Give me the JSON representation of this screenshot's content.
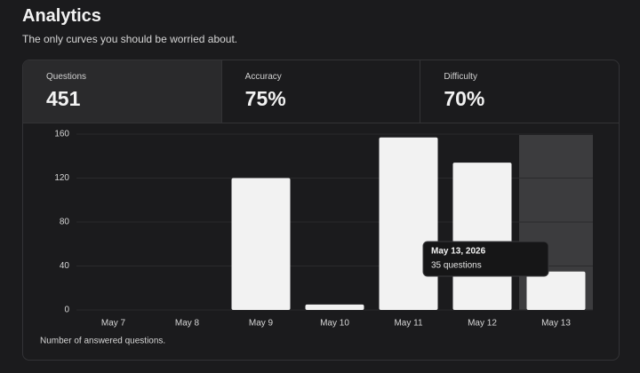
{
  "header": {
    "title": "Analytics",
    "subtitle": "The only curves you should be worried about."
  },
  "stats": [
    {
      "label": "Questions",
      "value": "451"
    },
    {
      "label": "Accuracy",
      "value": "75%"
    },
    {
      "label": "Difficulty",
      "value": "70%"
    }
  ],
  "chart_data": {
    "type": "bar",
    "categories": [
      "May 7",
      "May 8",
      "May 9",
      "May 10",
      "May 11",
      "May 12",
      "May 13"
    ],
    "values": [
      0,
      0,
      120,
      5,
      157,
      134,
      35
    ],
    "color": "#f2f2f2",
    "ylim": [
      0,
      160
    ],
    "yticks": [
      0,
      40,
      80,
      120,
      160
    ],
    "grid": true,
    "caption": "Number of answered questions."
  },
  "tooltip": {
    "title": "May 13, 2026",
    "text": "35 questions"
  }
}
